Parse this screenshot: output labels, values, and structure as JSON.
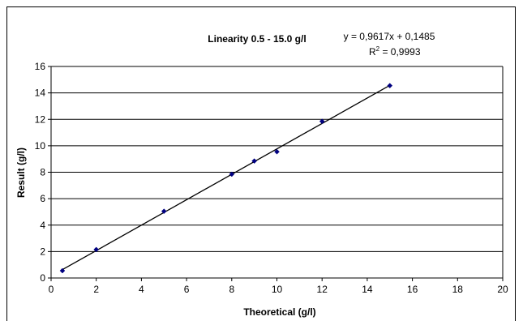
{
  "chart_data": {
    "type": "scatter",
    "title": "Linearity 0.5 - 15.0 g/l",
    "xlabel": "Theoretical (g/l)",
    "ylabel": "Result (g/l)",
    "xlim": [
      0,
      20
    ],
    "ylim": [
      0,
      16
    ],
    "xticks": [
      0,
      2,
      4,
      6,
      8,
      10,
      12,
      14,
      16,
      18,
      20
    ],
    "yticks": [
      0,
      2,
      4,
      6,
      8,
      10,
      12,
      14,
      16
    ],
    "grid": "horizontal",
    "legend": "none",
    "points": [
      {
        "x": 0.5,
        "y": 0.55
      },
      {
        "x": 2,
        "y": 2.15
      },
      {
        "x": 5,
        "y": 5.05
      },
      {
        "x": 8,
        "y": 7.85
      },
      {
        "x": 9,
        "y": 8.85
      },
      {
        "x": 10,
        "y": 9.55
      },
      {
        "x": 12,
        "y": 11.85
      },
      {
        "x": 15,
        "y": 14.55
      }
    ],
    "trendline": {
      "slope": 0.9617,
      "intercept": 0.1485,
      "x_range": [
        0.5,
        15
      ]
    },
    "equation": "y = 0,9617x + 0,1485",
    "r2_label": "R",
    "r2_value": " = 0,9993",
    "colors": {
      "marker": "#000080",
      "line": "#000000",
      "grid": "#000000"
    }
  }
}
